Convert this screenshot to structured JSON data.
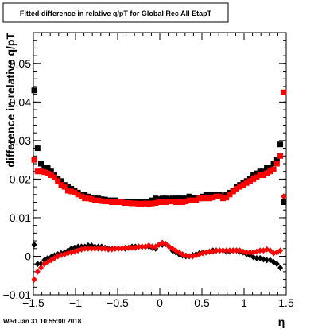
{
  "chart_data": {
    "type": "scatter",
    "title": "Fitted difference in relative q/pT for Global Rec All EtapT",
    "xlabel": "η",
    "ylabel": "difference in relative q/pT",
    "xlim": [
      -1.5,
      1.5
    ],
    "ylim": [
      -0.01,
      0.058
    ],
    "x_ticks": [
      -1.5,
      -1,
      -0.5,
      0,
      0.5,
      1,
      1.5
    ],
    "x_tick_labels": [
      "−1.5",
      "−1",
      "−0.5",
      "0",
      "0.5",
      "1",
      "1.5"
    ],
    "y_ticks": [
      -0.01,
      0,
      0.01,
      0.02,
      0.03,
      0.04,
      0.05
    ],
    "y_tick_labels": [
      "−0.01",
      "0",
      "0.01",
      "0.02",
      "0.03",
      "0.04",
      "0.05"
    ],
    "grid": false,
    "series": [
      {
        "marker": "square",
        "color": "#000000",
        "x": [
          -1.49,
          -1.45,
          -1.41,
          -1.37,
          -1.33,
          -1.29,
          -1.25,
          -1.21,
          -1.17,
          -1.13,
          -1.09,
          -1.05,
          -1.01,
          -0.97,
          -0.93,
          -0.89,
          -0.85,
          -0.81,
          -0.77,
          -0.73,
          -0.69,
          -0.65,
          -0.61,
          -0.57,
          -0.53,
          -0.49,
          -0.45,
          -0.41,
          -0.37,
          -0.33,
          -0.29,
          -0.25,
          -0.21,
          -0.17,
          -0.13,
          -0.09,
          -0.05,
          -0.01,
          0.03,
          0.07,
          0.11,
          0.15,
          0.19,
          0.23,
          0.27,
          0.31,
          0.35,
          0.39,
          0.43,
          0.47,
          0.51,
          0.55,
          0.59,
          0.63,
          0.67,
          0.71,
          0.75,
          0.79,
          0.83,
          0.87,
          0.91,
          0.95,
          0.99,
          1.03,
          1.07,
          1.11,
          1.15,
          1.19,
          1.23,
          1.27,
          1.31,
          1.35,
          1.39,
          1.43,
          1.47
        ],
        "y": [
          0.043,
          0.028,
          0.024,
          0.023,
          0.023,
          0.022,
          0.021,
          0.02,
          0.0195,
          0.0185,
          0.018,
          0.0175,
          0.017,
          0.0165,
          0.016,
          0.016,
          0.0155,
          0.015,
          0.015,
          0.015,
          0.0148,
          0.0147,
          0.0145,
          0.0145,
          0.0145,
          0.0142,
          0.0142,
          0.014,
          0.014,
          0.014,
          0.014,
          0.014,
          0.014,
          0.014,
          0.014,
          0.0145,
          0.015,
          0.0148,
          0.015,
          0.015,
          0.0148,
          0.015,
          0.015,
          0.015,
          0.015,
          0.015,
          0.0155,
          0.0152,
          0.015,
          0.015,
          0.0155,
          0.016,
          0.016,
          0.016,
          0.016,
          0.016,
          0.0155,
          0.016,
          0.0165,
          0.017,
          0.018,
          0.0185,
          0.019,
          0.0195,
          0.02,
          0.021,
          0.0215,
          0.022,
          0.022,
          0.023,
          0.023,
          0.024,
          0.025,
          0.029,
          0.014
        ]
      },
      {
        "marker": "square",
        "color": "#ff0000",
        "x": [
          -1.49,
          -1.45,
          -1.41,
          -1.37,
          -1.33,
          -1.29,
          -1.25,
          -1.21,
          -1.17,
          -1.13,
          -1.09,
          -1.05,
          -1.01,
          -0.97,
          -0.93,
          -0.89,
          -0.85,
          -0.81,
          -0.77,
          -0.73,
          -0.69,
          -0.65,
          -0.61,
          -0.57,
          -0.53,
          -0.49,
          -0.45,
          -0.41,
          -0.37,
          -0.33,
          -0.29,
          -0.25,
          -0.21,
          -0.17,
          -0.13,
          -0.09,
          -0.05,
          -0.01,
          0.03,
          0.07,
          0.11,
          0.15,
          0.19,
          0.23,
          0.27,
          0.31,
          0.35,
          0.39,
          0.43,
          0.47,
          0.51,
          0.55,
          0.59,
          0.63,
          0.67,
          0.71,
          0.75,
          0.79,
          0.83,
          0.87,
          0.91,
          0.95,
          0.99,
          1.03,
          1.07,
          1.11,
          1.15,
          1.19,
          1.23,
          1.27,
          1.31,
          1.35,
          1.39,
          1.43,
          1.47
        ],
        "y": [
          0.025,
          0.022,
          0.022,
          0.0218,
          0.0215,
          0.021,
          0.0205,
          0.0195,
          0.0185,
          0.018,
          0.017,
          0.0168,
          0.0165,
          0.016,
          0.0155,
          0.015,
          0.015,
          0.0148,
          0.0145,
          0.0145,
          0.0143,
          0.0142,
          0.0142,
          0.014,
          0.014,
          0.014,
          0.014,
          0.0138,
          0.0138,
          0.0137,
          0.0137,
          0.0136,
          0.0136,
          0.0137,
          0.0136,
          0.0137,
          0.0138,
          0.014,
          0.014,
          0.014,
          0.0142,
          0.0142,
          0.014,
          0.014,
          0.014,
          0.0142,
          0.0145,
          0.0145,
          0.0145,
          0.015,
          0.015,
          0.015,
          0.015,
          0.0152,
          0.0155,
          0.0155,
          0.015,
          0.0152,
          0.016,
          0.0168,
          0.0175,
          0.018,
          0.0185,
          0.019,
          0.0195,
          0.02,
          0.0205,
          0.021,
          0.021,
          0.0215,
          0.022,
          0.0225,
          0.024,
          0.026,
          0.0425
        ]
      },
      {
        "marker": "diamond",
        "color": "#000000",
        "x": [
          -1.49,
          -1.45,
          -1.41,
          -1.37,
          -1.33,
          -1.29,
          -1.25,
          -1.21,
          -1.17,
          -1.13,
          -1.09,
          -1.05,
          -1.01,
          -0.97,
          -0.93,
          -0.89,
          -0.85,
          -0.81,
          -0.77,
          -0.73,
          -0.69,
          -0.65,
          -0.61,
          -0.57,
          -0.53,
          -0.49,
          -0.45,
          -0.41,
          -0.37,
          -0.33,
          -0.29,
          -0.25,
          -0.21,
          -0.17,
          -0.13,
          -0.09,
          -0.05,
          -0.01,
          0.03,
          0.07,
          0.11,
          0.15,
          0.19,
          0.23,
          0.27,
          0.31,
          0.35,
          0.39,
          0.43,
          0.47,
          0.51,
          0.55,
          0.59,
          0.63,
          0.67,
          0.71,
          0.75,
          0.79,
          0.83,
          0.87,
          0.91,
          0.95,
          0.99,
          1.03,
          1.07,
          1.11,
          1.15,
          1.19,
          1.23,
          1.27,
          1.31,
          1.35,
          1.39,
          1.43,
          1.47
        ],
        "y": [
          0.003,
          -0.002,
          -0.002,
          -0.001,
          -0.0005,
          -0.0002,
          0.0002,
          0.0005,
          0.0008,
          0.001,
          0.0015,
          0.002,
          0.0022,
          0.0025,
          0.0025,
          0.0025,
          0.0028,
          0.0028,
          0.0025,
          0.0025,
          0.0025,
          0.0022,
          0.002,
          0.002,
          0.002,
          0.002,
          0.002,
          0.002,
          0.0022,
          0.0025,
          0.0025,
          0.0025,
          0.0025,
          0.0025,
          0.0025,
          0.0022,
          0.002,
          0.003,
          0.003,
          0.0032,
          0.0025,
          0.0015,
          0.001,
          0.0005,
          0.0002,
          0.0,
          0.0,
          0.0003,
          0.0005,
          0.0008,
          0.001,
          0.001,
          0.0012,
          0.0015,
          0.0015,
          0.0015,
          0.0015,
          0.0012,
          0.0012,
          0.0015,
          0.0015,
          0.0012,
          0.001,
          0.0005,
          0.0002,
          -0.0002,
          -0.0005,
          -0.0005,
          -0.0008,
          -0.001,
          -0.001,
          -0.0015,
          -0.002,
          -0.003,
          0.0145
        ]
      },
      {
        "marker": "diamond",
        "color": "#ff0000",
        "x": [
          -1.49,
          -1.45,
          -1.41,
          -1.37,
          -1.33,
          -1.29,
          -1.25,
          -1.21,
          -1.17,
          -1.13,
          -1.09,
          -1.05,
          -1.01,
          -0.97,
          -0.93,
          -0.89,
          -0.85,
          -0.81,
          -0.77,
          -0.73,
          -0.69,
          -0.65,
          -0.61,
          -0.57,
          -0.53,
          -0.49,
          -0.45,
          -0.41,
          -0.37,
          -0.33,
          -0.29,
          -0.25,
          -0.21,
          -0.17,
          -0.13,
          -0.09,
          -0.05,
          -0.01,
          0.03,
          0.07,
          0.11,
          0.15,
          0.19,
          0.23,
          0.27,
          0.31,
          0.35,
          0.39,
          0.43,
          0.47,
          0.51,
          0.55,
          0.59,
          0.63,
          0.67,
          0.71,
          0.75,
          0.79,
          0.83,
          0.87,
          0.91,
          0.95,
          0.99,
          1.03,
          1.07,
          1.11,
          1.15,
          1.19,
          1.23,
          1.27,
          1.31,
          1.35,
          1.39,
          1.43,
          1.47
        ],
        "y": [
          -0.006,
          -0.004,
          -0.003,
          -0.002,
          -0.0015,
          -0.001,
          -0.0005,
          0.0,
          0.0003,
          0.0005,
          0.0008,
          0.001,
          0.0012,
          0.0015,
          0.0018,
          0.002,
          0.002,
          0.002,
          0.002,
          0.002,
          0.002,
          0.002,
          0.0018,
          0.0018,
          0.002,
          0.002,
          0.002,
          0.0022,
          0.0022,
          0.0022,
          0.0022,
          0.0025,
          0.0025,
          0.0025,
          0.0028,
          0.0025,
          0.0025,
          0.003,
          0.0035,
          0.0032,
          0.0025,
          0.002,
          0.0015,
          0.001,
          0.0005,
          0.0002,
          0.0,
          0.0,
          0.0002,
          0.0005,
          0.0008,
          0.001,
          0.0012,
          0.0012,
          0.0015,
          0.0015,
          0.0015,
          0.0015,
          0.0015,
          0.0015,
          0.0015,
          0.0015,
          0.0012,
          0.001,
          0.001,
          0.001,
          0.0012,
          0.0015,
          0.0015,
          0.0018,
          0.0015,
          0.0008,
          0.001,
          0.0015,
          0.0155
        ]
      }
    ]
  },
  "footer": {
    "timestamp": "Wed Jan 31 10:55:00 2018"
  }
}
